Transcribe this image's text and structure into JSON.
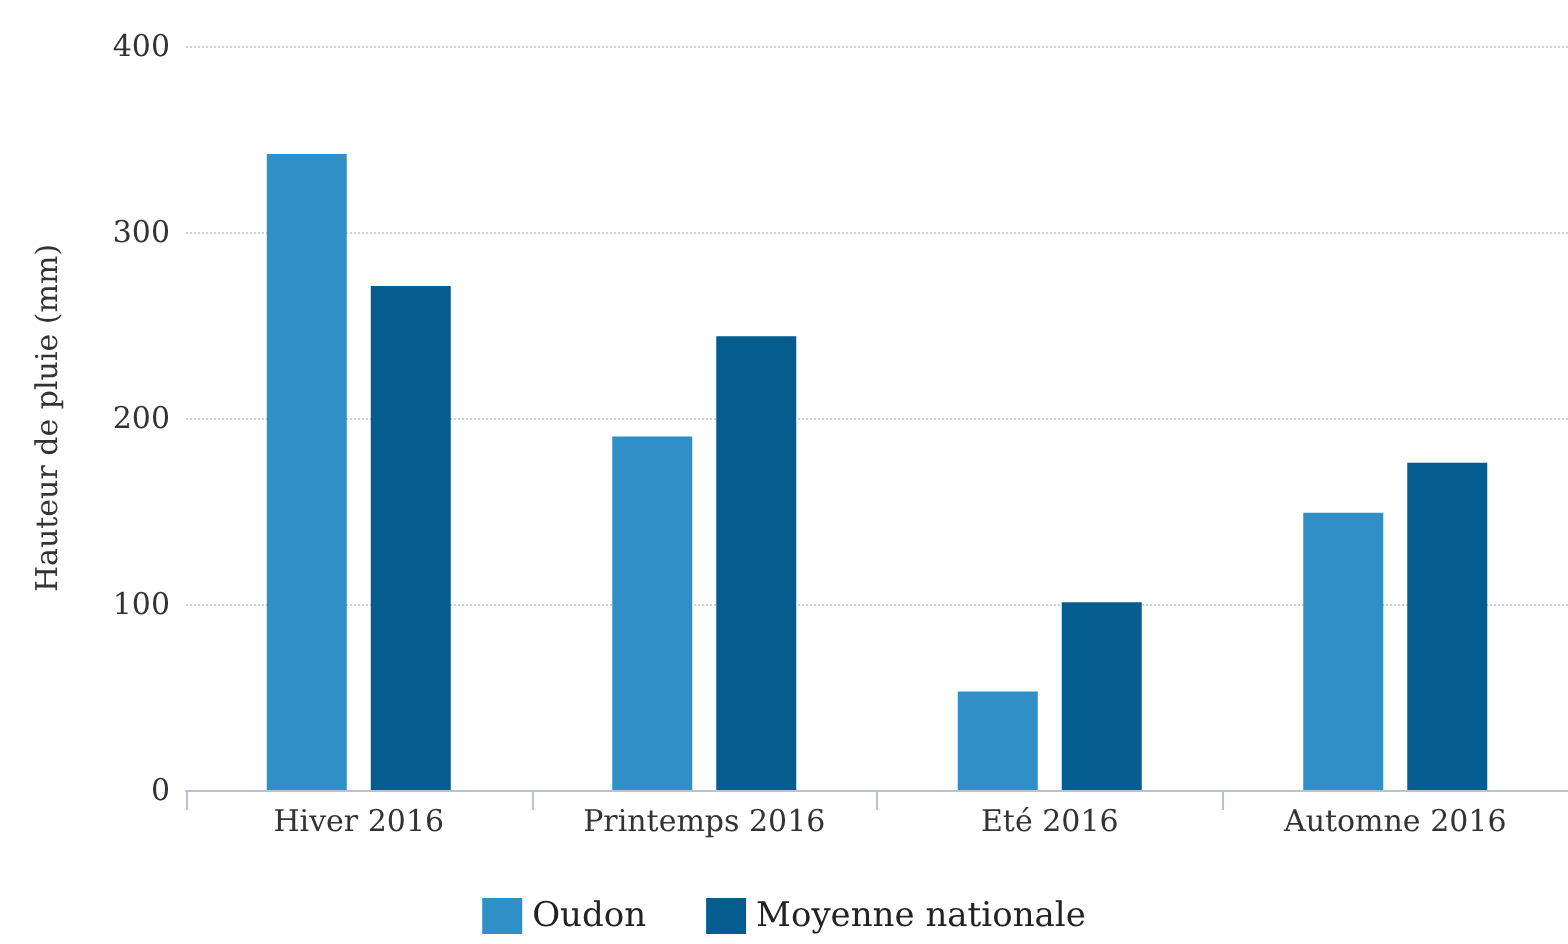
{
  "chart_data": {
    "type": "bar",
    "ylabel": "Hauteur de pluie (mm)",
    "categories": [
      "Hiver 2016",
      "Printemps 2016",
      "Eté 2016",
      "Automne 2016"
    ],
    "series": [
      {
        "name": "Oudon",
        "color": "#2f8fc6",
        "values": [
          342,
          190,
          53,
          149
        ]
      },
      {
        "name": "Moyenne nationale",
        "color": "#045d8e",
        "values": [
          271,
          244,
          101,
          176
        ]
      }
    ],
    "ylim": [
      0,
      400
    ],
    "yticks": [
      0,
      100,
      200,
      300,
      400
    ],
    "grid": "y",
    "legend": "bottom"
  }
}
